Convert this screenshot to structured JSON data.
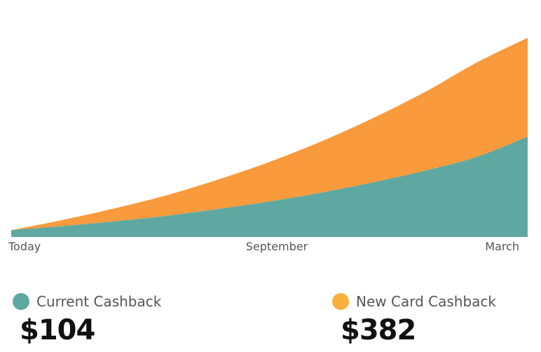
{
  "chart_data": {
    "type": "area",
    "stacked": true,
    "x_ticks": [
      "Today",
      "September",
      "March"
    ],
    "x": [
      0,
      0.1,
      0.2,
      0.3,
      0.4,
      0.5,
      0.6,
      0.7,
      0.8,
      0.9,
      1.0
    ],
    "series": [
      {
        "name": "Current Cashback",
        "color": "#5fa8a2",
        "values": [
          10,
          16,
          23,
          31,
          41,
          52,
          65,
          80,
          97,
          117,
          147
        ]
      },
      {
        "name": "New Card Cashback",
        "color": "#f99a3c",
        "values": [
          0,
          9,
          19,
          30,
          43,
          58,
          75,
          94,
          115,
          138,
          145
        ]
      }
    ],
    "ylim": [
      0,
      300
    ]
  },
  "legend": {
    "current": {
      "label": "Current Cashback",
      "amount": "$104",
      "color": "#5fa8a2"
    },
    "new_card": {
      "label": "New Card Cashback",
      "amount": "$382",
      "color": "#f9b03c"
    }
  }
}
